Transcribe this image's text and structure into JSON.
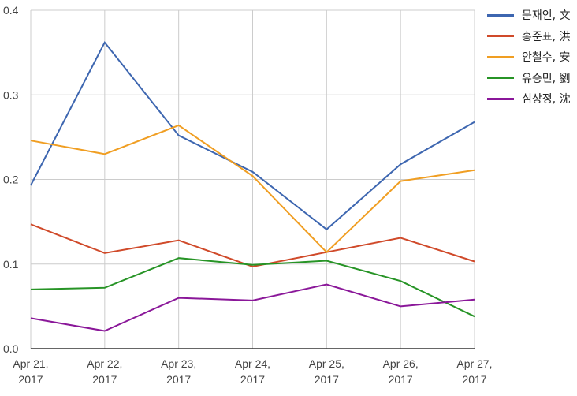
{
  "chart_data": {
    "type": "line",
    "title": "",
    "xlabel": "",
    "ylabel": "",
    "ylim": [
      0,
      0.4
    ],
    "yticks": [
      "0.0",
      "0.1",
      "0.2",
      "0.3",
      "0.4"
    ],
    "ytick_values": [
      0,
      0.1,
      0.2,
      0.3,
      0.4
    ],
    "categories": [
      [
        "Apr 21,",
        "2017"
      ],
      [
        "Apr 22,",
        "2017"
      ],
      [
        "Apr 23,",
        "2017"
      ],
      [
        "Apr 24,",
        "2017"
      ],
      [
        "Apr 25,",
        "2017"
      ],
      [
        "Apr 26,",
        "2017"
      ],
      [
        "Apr 27,",
        "2017"
      ]
    ],
    "grid": true,
    "legend_position": "right",
    "series": [
      {
        "name": "문재인, 文",
        "color": "#3d66b0",
        "values": [
          0.193,
          0.362,
          0.252,
          0.209,
          0.141,
          0.218,
          0.268
        ]
      },
      {
        "name": "홍준표, 洪",
        "color": "#d04a2a",
        "values": [
          0.147,
          0.113,
          0.128,
          0.097,
          0.114,
          0.131,
          0.103
        ]
      },
      {
        "name": "안철수, 安",
        "color": "#f09e22",
        "values": [
          0.246,
          0.23,
          0.264,
          0.204,
          0.114,
          0.198,
          0.211
        ]
      },
      {
        "name": "유승민, 劉",
        "color": "#279426",
        "values": [
          0.07,
          0.072,
          0.107,
          0.099,
          0.104,
          0.08,
          0.038
        ]
      },
      {
        "name": "심상정, 沈",
        "color": "#8a1799",
        "values": [
          0.036,
          0.021,
          0.06,
          0.057,
          0.076,
          0.05,
          0.058
        ]
      }
    ]
  }
}
